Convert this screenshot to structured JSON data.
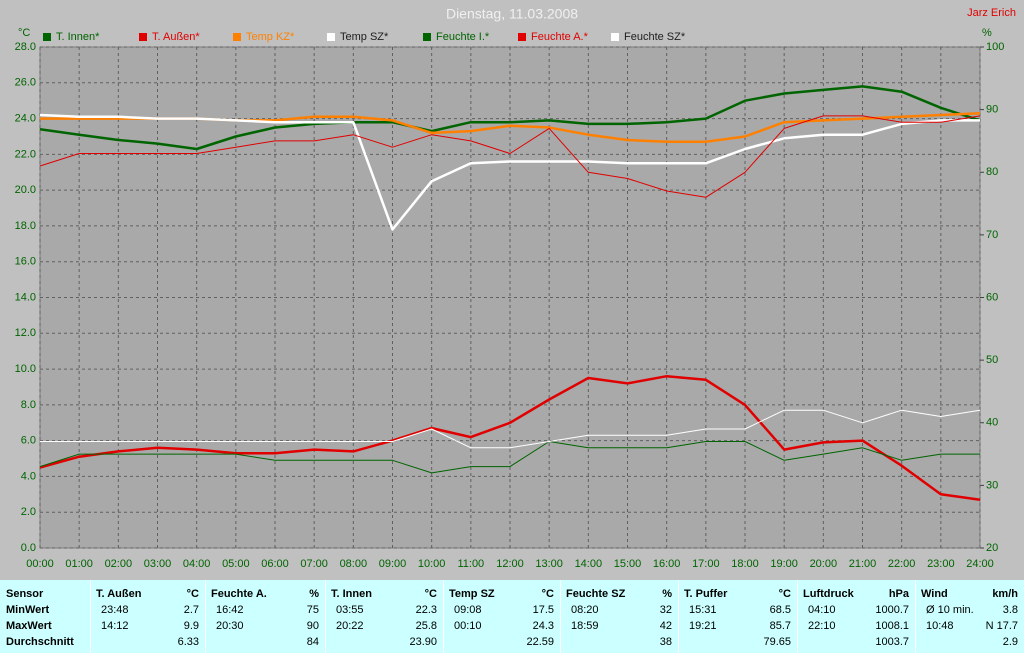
{
  "chart_data": {
    "type": "line",
    "title": "Dienstag, 11.03.2008",
    "author": "Jarz Erich",
    "y_label": "°C",
    "y2_label": "%",
    "x": [
      0,
      1,
      2,
      3,
      4,
      5,
      6,
      7,
      8,
      9,
      10,
      11,
      12,
      13,
      14,
      15,
      16,
      17,
      18,
      19,
      20,
      21,
      22,
      23,
      24
    ],
    "xlim": [
      0,
      24
    ],
    "xticks": [
      {
        "value": 0,
        "label": "00:00"
      },
      {
        "value": 1,
        "label": "01:00"
      },
      {
        "value": 2,
        "label": "02:00"
      },
      {
        "value": 3,
        "label": "03:00"
      },
      {
        "value": 4,
        "label": "04:00"
      },
      {
        "value": 5,
        "label": "05:00"
      },
      {
        "value": 6,
        "label": "06:00"
      },
      {
        "value": 7,
        "label": "07:00"
      },
      {
        "value": 8,
        "label": "08:00"
      },
      {
        "value": 9,
        "label": "09:00"
      },
      {
        "value": 10,
        "label": "10:00"
      },
      {
        "value": 11,
        "label": "11:00"
      },
      {
        "value": 12,
        "label": "12:00"
      },
      {
        "value": 13,
        "label": "13:00"
      },
      {
        "value": 14,
        "label": "14:00"
      },
      {
        "value": 15,
        "label": "15:00"
      },
      {
        "value": 16,
        "label": "16:00"
      },
      {
        "value": 17,
        "label": "17:00"
      },
      {
        "value": 18,
        "label": "18:00"
      },
      {
        "value": 19,
        "label": "19:00"
      },
      {
        "value": 20,
        "label": "20:00"
      },
      {
        "value": 21,
        "label": "21:00"
      },
      {
        "value": 22,
        "label": "22:00"
      },
      {
        "value": 23,
        "label": "23:00"
      },
      {
        "value": 24,
        "label": "24:00"
      }
    ],
    "ylim": [
      0,
      28
    ],
    "yticks": [
      {
        "value": 0,
        "label": "0.0"
      },
      {
        "value": 2,
        "label": "2.0"
      },
      {
        "value": 4,
        "label": "4.0"
      },
      {
        "value": 6,
        "label": "6.0"
      },
      {
        "value": 8,
        "label": "8.0"
      },
      {
        "value": 10,
        "label": "10.0"
      },
      {
        "value": 12,
        "label": "12.0"
      },
      {
        "value": 14,
        "label": "14.0"
      },
      {
        "value": 16,
        "label": "16.0"
      },
      {
        "value": 18,
        "label": "18.0"
      },
      {
        "value": 20,
        "label": "20.0"
      },
      {
        "value": 22,
        "label": "22.0"
      },
      {
        "value": 24,
        "label": "24.0"
      },
      {
        "value": 26,
        "label": "26.0"
      },
      {
        "value": 28,
        "label": "28.0"
      }
    ],
    "y2lim": [
      20,
      100
    ],
    "y2ticks": [
      20,
      30,
      40,
      50,
      60,
      70,
      80,
      90,
      100
    ],
    "grid": true,
    "series": [
      {
        "name": "T. Innen*",
        "color": "#006400",
        "values": [
          23.4,
          23.1,
          22.8,
          22.6,
          22.3,
          23.0,
          23.5,
          23.7,
          23.8,
          23.8,
          23.3,
          23.8,
          23.8,
          23.9,
          23.7,
          23.7,
          23.8,
          24.0,
          25.0,
          25.4,
          25.6,
          25.8,
          25.5,
          24.6,
          23.9
        ]
      },
      {
        "name": "T. Außen*",
        "color": "#e00000",
        "values": [
          4.5,
          5.1,
          5.4,
          5.6,
          5.5,
          5.3,
          5.3,
          5.5,
          5.4,
          6.0,
          6.7,
          6.2,
          7.0,
          8.3,
          9.5,
          9.2,
          9.6,
          9.4,
          8.0,
          5.5,
          5.9,
          6.0,
          4.6,
          3.0,
          2.7
        ]
      },
      {
        "name": "Temp KZ*",
        "color": "#ff8000",
        "values": [
          24.0,
          24.0,
          24.0,
          24.0,
          24.0,
          23.9,
          23.9,
          24.1,
          24.1,
          23.9,
          23.2,
          23.3,
          23.6,
          23.5,
          23.1,
          22.8,
          22.7,
          22.7,
          23.0,
          23.8,
          23.9,
          24.0,
          24.1,
          24.2,
          24.3
        ]
      },
      {
        "name": "Temp SZ*",
        "color": "#ffffff",
        "values": [
          24.2,
          24.1,
          24.1,
          24.0,
          24.0,
          23.9,
          23.8,
          23.8,
          23.8,
          17.8,
          20.5,
          21.5,
          21.6,
          21.6,
          21.6,
          21.5,
          21.5,
          21.5,
          22.3,
          22.9,
          23.1,
          23.1,
          23.7,
          23.9,
          23.9
        ]
      },
      {
        "name": "Feuchte I.*",
        "color": "#006400",
        "axis": "y2",
        "values": [
          33,
          35,
          35,
          35,
          35,
          35,
          34,
          34,
          34,
          34,
          32,
          33,
          33,
          37,
          36,
          36,
          36,
          37,
          37,
          34,
          35,
          36,
          34,
          35,
          35
        ]
      },
      {
        "name": "Feuchte A.*",
        "color": "#e00000",
        "axis": "y2",
        "values": [
          81,
          83,
          83,
          83,
          83,
          84,
          85,
          85,
          86,
          84,
          86,
          85,
          83,
          87,
          80,
          79,
          77,
          76,
          80,
          87,
          89,
          89,
          88,
          88,
          89
        ]
      },
      {
        "name": "Feuchte SZ*",
        "color": "#ffffff",
        "axis": "y2",
        "values": [
          37,
          37,
          37,
          37,
          37,
          37,
          37,
          37,
          37,
          37,
          39,
          36,
          36,
          37,
          38,
          38,
          38,
          39,
          39,
          42,
          42,
          40,
          42,
          41,
          42
        ]
      }
    ]
  },
  "stats": {
    "row_labels": [
      "Sensor",
      "MinWert",
      "MaxWert",
      "Durchschnitt"
    ],
    "columns": [
      {
        "name": "T. Außen",
        "unit": "°C",
        "min": [
          "23:48",
          "2.7"
        ],
        "max": [
          "14:12",
          "9.9"
        ],
        "avg": "6.33"
      },
      {
        "name": "Feuchte A.",
        "unit": "%",
        "min": [
          "16:42",
          "75"
        ],
        "max": [
          "20:30",
          "90"
        ],
        "avg": "84"
      },
      {
        "name": "T. Innen",
        "unit": "°C",
        "min": [
          "03:55",
          "22.3"
        ],
        "max": [
          "20:22",
          "25.8"
        ],
        "avg": "23.90"
      },
      {
        "name": "Temp SZ",
        "unit": "°C",
        "min": [
          "09:08",
          "17.5"
        ],
        "max": [
          "00:10",
          "24.3"
        ],
        "avg": "22.59"
      },
      {
        "name": "Feuchte SZ",
        "unit": "%",
        "min": [
          "08:20",
          "32"
        ],
        "max": [
          "18:59",
          "42"
        ],
        "avg": "38"
      },
      {
        "name": "T. Puffer",
        "unit": "°C",
        "min": [
          "15:31",
          "68.5"
        ],
        "max": [
          "19:21",
          "85.7"
        ],
        "avg": "79.65"
      },
      {
        "name": "Luftdruck",
        "unit": "hPa",
        "min": [
          "04:10",
          "1000.7"
        ],
        "max": [
          "22:10",
          "1008.1"
        ],
        "avg": "1003.7"
      },
      {
        "name": "Wind",
        "unit": "km/h",
        "min": [
          "Ø 10 min.",
          "3.8"
        ],
        "max": [
          "10:48",
          "N 17.7"
        ],
        "avg": "2.9"
      }
    ]
  }
}
